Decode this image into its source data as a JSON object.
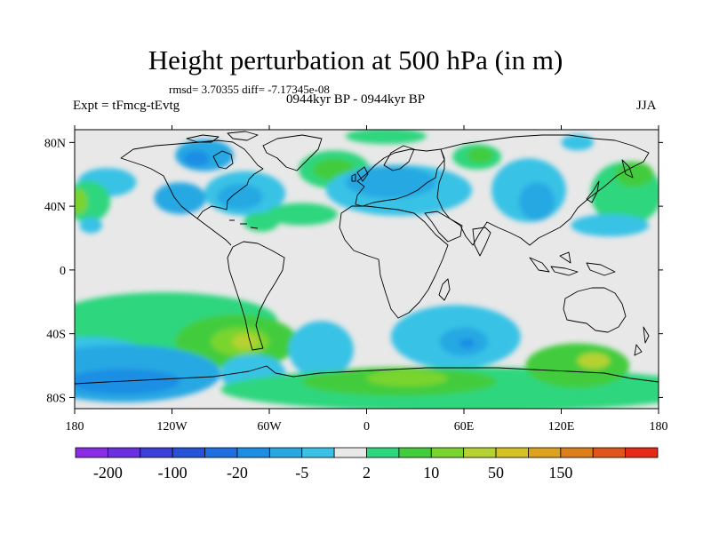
{
  "chart_data": {
    "type": "contour-map",
    "title": "Height perturbation at 500 hPa (in m)",
    "subtitle_left": "Expt = tFmcg-tEvtg",
    "subtitle_stats": "rmsd= 3.70355 diff= -7.17345e-08",
    "subtitle_center": "0944kyr BP - 0944kyr BP",
    "subtitle_right": "JJA",
    "xlim": [
      -180,
      180
    ],
    "ylim": [
      -90,
      90
    ],
    "x_ticks": [
      {
        "value": -180,
        "label": "180"
      },
      {
        "value": -120,
        "label": "120W"
      },
      {
        "value": -60,
        "label": "60W"
      },
      {
        "value": 0,
        "label": "0"
      },
      {
        "value": 60,
        "label": "60E"
      },
      {
        "value": 120,
        "label": "120E"
      },
      {
        "value": 180,
        "label": "180"
      }
    ],
    "y_ticks": [
      {
        "value": 80,
        "label": "80N"
      },
      {
        "value": 40,
        "label": "40N"
      },
      {
        "value": 0,
        "label": "0"
      },
      {
        "value": -40,
        "label": "40S"
      },
      {
        "value": -80,
        "label": "80S"
      }
    ],
    "colorbar": {
      "colors": [
        "#8a2be6",
        "#6a30e0",
        "#3b3fd8",
        "#2552d6",
        "#1f6fe0",
        "#1e8ee4",
        "#27a8e3",
        "#39c2e6",
        "#e8e8e8",
        "#2ed67e",
        "#43cc3c",
        "#7ad42f",
        "#b5d232",
        "#d6c227",
        "#dca21f",
        "#dc7f1a",
        "#e0561a",
        "#e72a16"
      ],
      "labels": [
        {
          "after_index": 0,
          "text": "-200"
        },
        {
          "after_index": 2,
          "text": "-100"
        },
        {
          "after_index": 4,
          "text": "-20"
        },
        {
          "after_index": 6,
          "text": "-5"
        },
        {
          "after_index": 8,
          "text": "2"
        },
        {
          "after_index": 10,
          "text": "10"
        },
        {
          "after_index": 12,
          "text": "50"
        },
        {
          "after_index": 14,
          "text": "150"
        }
      ]
    },
    "anomaly_regions": [
      {
        "lon": -100,
        "lat": 72,
        "rx": 18,
        "ry": 10,
        "level": 6
      },
      {
        "lon": -105,
        "lat": 70,
        "rx": 8,
        "ry": 5,
        "level": 5
      },
      {
        "lon": -160,
        "lat": 55,
        "rx": 18,
        "ry": 9,
        "level": 7
      },
      {
        "lon": -115,
        "lat": 45,
        "rx": 16,
        "ry": 10,
        "level": 6
      },
      {
        "lon": -75,
        "lat": 48,
        "rx": 25,
        "ry": 14,
        "level": 7
      },
      {
        "lon": -78,
        "lat": 46,
        "rx": 14,
        "ry": 8,
        "level": 6
      },
      {
        "lon": -172,
        "lat": 43,
        "rx": 14,
        "ry": 13,
        "level": 9
      },
      {
        "lon": -178,
        "lat": 43,
        "rx": 6,
        "ry": 8,
        "level": 11
      },
      {
        "lon": -170,
        "lat": 28,
        "rx": 7,
        "ry": 5,
        "level": 7
      },
      {
        "lon": -40,
        "lat": 35,
        "rx": 22,
        "ry": 7,
        "level": 9
      },
      {
        "lon": -20,
        "lat": 63,
        "rx": 22,
        "ry": 12,
        "level": 9
      },
      {
        "lon": -20,
        "lat": 63,
        "rx": 13,
        "ry": 7,
        "level": 10
      },
      {
        "lon": 20,
        "lat": 50,
        "rx": 45,
        "ry": 16,
        "level": 7
      },
      {
        "lon": 15,
        "lat": 55,
        "rx": 28,
        "ry": 10,
        "level": 6
      },
      {
        "lon": 12,
        "lat": 84,
        "rx": 25,
        "ry": 5,
        "level": 9
      },
      {
        "lon": 68,
        "lat": 71,
        "rx": 15,
        "ry": 8,
        "level": 9
      },
      {
        "lon": 70,
        "lat": 72,
        "rx": 8,
        "ry": 5,
        "level": 10
      },
      {
        "lon": 100,
        "lat": 50,
        "rx": 23,
        "ry": 20,
        "level": 7
      },
      {
        "lon": 105,
        "lat": 43,
        "rx": 11,
        "ry": 12,
        "level": 6
      },
      {
        "lon": 130,
        "lat": 80,
        "rx": 10,
        "ry": 5,
        "level": 7
      },
      {
        "lon": 160,
        "lat": 48,
        "rx": 22,
        "ry": 20,
        "level": 9
      },
      {
        "lon": 165,
        "lat": 60,
        "rx": 12,
        "ry": 8,
        "level": 10
      },
      {
        "lon": 150,
        "lat": 28,
        "rx": 24,
        "ry": 7,
        "level": 7
      },
      {
        "lon": -65,
        "lat": 30,
        "rx": 11,
        "ry": 6,
        "level": 9
      },
      {
        "lon": -125,
        "lat": -32,
        "rx": 70,
        "ry": 18,
        "level": 9
      },
      {
        "lon": -80,
        "lat": -45,
        "rx": 38,
        "ry": 17,
        "level": 10
      },
      {
        "lon": -78,
        "lat": -45,
        "rx": 18,
        "ry": 9,
        "level": 11
      },
      {
        "lon": -75,
        "lat": -45,
        "rx": 8,
        "ry": 5,
        "level": 12
      },
      {
        "lon": -28,
        "lat": -50,
        "rx": 20,
        "ry": 18,
        "level": 7
      },
      {
        "lon": 55,
        "lat": -42,
        "rx": 40,
        "ry": 20,
        "level": 7
      },
      {
        "lon": 60,
        "lat": -45,
        "rx": 15,
        "ry": 9,
        "level": 6
      },
      {
        "lon": 62,
        "lat": -46,
        "rx": 5,
        "ry": 3,
        "level": 5
      },
      {
        "lon": -170,
        "lat": -60,
        "rx": 40,
        "ry": 18,
        "level": 7
      },
      {
        "lon": -150,
        "lat": -65,
        "rx": 60,
        "ry": 18,
        "level": 6
      },
      {
        "lon": -150,
        "lat": -70,
        "rx": 35,
        "ry": 8,
        "level": 5
      },
      {
        "lon": -70,
        "lat": -65,
        "rx": 20,
        "ry": 12,
        "level": 7
      },
      {
        "lon": 60,
        "lat": -75,
        "rx": 150,
        "ry": 14,
        "level": 9
      },
      {
        "lon": 20,
        "lat": -70,
        "rx": 60,
        "ry": 9,
        "level": 10
      },
      {
        "lon": 25,
        "lat": -68,
        "rx": 25,
        "ry": 5,
        "level": 11
      },
      {
        "lon": 130,
        "lat": -60,
        "rx": 32,
        "ry": 14,
        "level": 10
      },
      {
        "lon": 140,
        "lat": -57,
        "rx": 10,
        "ry": 5,
        "level": 12
      }
    ]
  },
  "map": {
    "coastline_color": "#000000",
    "ocean_neutral_color": "#e8e8e8"
  }
}
